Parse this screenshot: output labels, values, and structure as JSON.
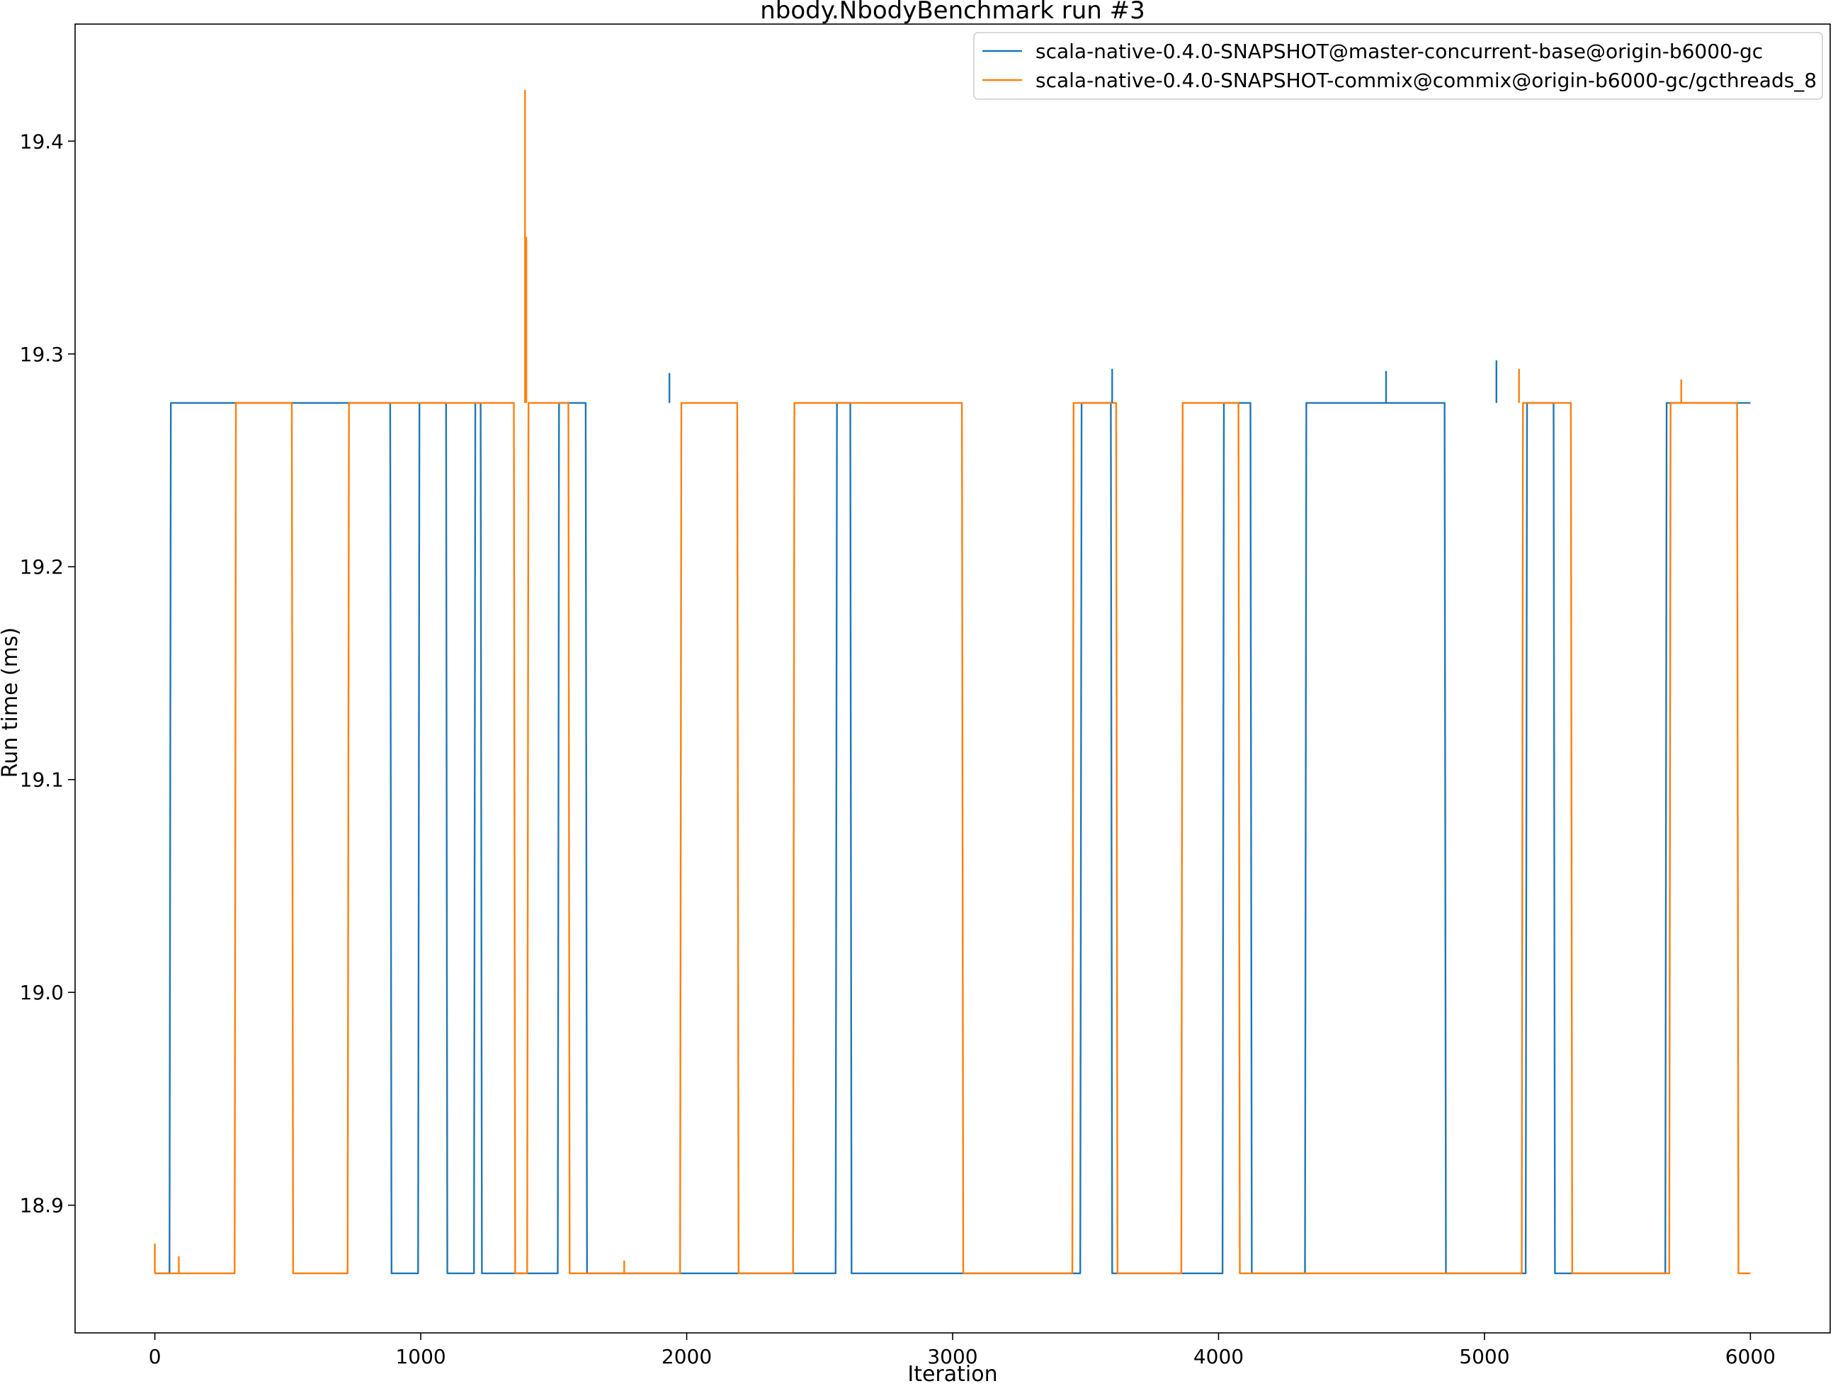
{
  "chart_data": {
    "type": "line",
    "title": "nbody.NbodyBenchmark run #3",
    "xlabel": "Iteration",
    "ylabel": "Run time (ms)",
    "xlim": [
      -300,
      6300
    ],
    "ylim": [
      18.84,
      19.455
    ],
    "xticks": [
      0,
      1000,
      2000,
      3000,
      4000,
      5000,
      6000
    ],
    "xtick_labels": [
      "0",
      "1000",
      "2000",
      "3000",
      "4000",
      "5000",
      "6000"
    ],
    "yticks": [
      18.9,
      19.0,
      19.1,
      19.2,
      19.3,
      19.4
    ],
    "ytick_labels": [
      "18.9",
      "19.0",
      "19.1",
      "19.2",
      "19.3",
      "19.4"
    ],
    "grid": false,
    "legend": "top-right",
    "series": [
      {
        "name": "scala-native-0.4.0-SNAPSHOT@master-concurrent-base@origin-b6000-gc",
        "color": "#1f77b4",
        "x": [
          0,
          55,
          60,
          885,
          890,
          990,
          995,
          1095,
          1100,
          1200,
          1205,
          1225,
          1230,
          1515,
          1520,
          1620,
          1625,
          2560,
          2565,
          2615,
          2620,
          3480,
          3485,
          3595,
          3600,
          4015,
          4020,
          4120,
          4125,
          4325,
          4330,
          4850,
          4855,
          5155,
          5160,
          5260,
          5265,
          5680,
          5685,
          5925,
          5930,
          6000
        ],
        "y": [
          18.868,
          18.868,
          19.277,
          19.277,
          18.868,
          18.868,
          19.277,
          19.277,
          18.868,
          18.868,
          19.277,
          19.277,
          18.868,
          18.868,
          19.277,
          19.277,
          18.868,
          18.868,
          19.277,
          19.277,
          18.868,
          18.868,
          19.277,
          19.277,
          18.868,
          18.868,
          19.277,
          19.277,
          18.868,
          18.868,
          19.277,
          19.277,
          18.868,
          18.868,
          19.277,
          19.277,
          18.868,
          18.868,
          19.277,
          19.277,
          19.277,
          19.277
        ]
      },
      {
        "name": "scala-native-0.4.0-SNAPSHOT-commix@commix@origin-b6000-gc/gcthreads_8",
        "color": "#ff7f0e",
        "x": [
          0,
          300,
          305,
          515,
          520,
          725,
          730,
          1350,
          1355,
          1400,
          1405,
          1555,
          1560,
          1975,
          1980,
          2190,
          2195,
          2400,
          2405,
          3035,
          3040,
          3450,
          3455,
          3615,
          3620,
          3860,
          3865,
          4075,
          4080,
          5140,
          5145,
          5325,
          5330,
          5695,
          5700,
          5950,
          5955,
          6000
        ],
        "y": [
          18.868,
          18.868,
          19.277,
          19.277,
          18.868,
          18.868,
          19.277,
          19.277,
          18.868,
          18.868,
          19.277,
          19.277,
          18.868,
          18.868,
          19.277,
          19.277,
          18.868,
          18.868,
          19.277,
          19.277,
          18.868,
          18.868,
          19.277,
          19.277,
          18.868,
          18.868,
          19.277,
          19.277,
          18.868,
          18.868,
          19.277,
          19.277,
          18.868,
          18.868,
          19.277,
          19.277,
          18.868,
          18.868
        ]
      }
    ],
    "spikes": [
      {
        "series": 1,
        "x": 1392,
        "y": 19.424
      },
      {
        "series": 1,
        "x": 1397,
        "y": 19.355
      },
      {
        "series": 0,
        "x": 5045,
        "y": 19.297
      },
      {
        "series": 0,
        "x": 3600,
        "y": 19.293
      },
      {
        "series": 1,
        "x": 5130,
        "y": 19.293
      },
      {
        "series": 0,
        "x": 4630,
        "y": 19.292
      },
      {
        "series": 0,
        "x": 1935,
        "y": 19.291
      },
      {
        "series": 1,
        "x": 5740,
        "y": 19.288
      },
      {
        "series": 1,
        "x": 0,
        "y": 18.882
      },
      {
        "series": 1,
        "x": 90,
        "y": 18.876
      },
      {
        "series": 1,
        "x": 1765,
        "y": 18.874
      }
    ]
  }
}
